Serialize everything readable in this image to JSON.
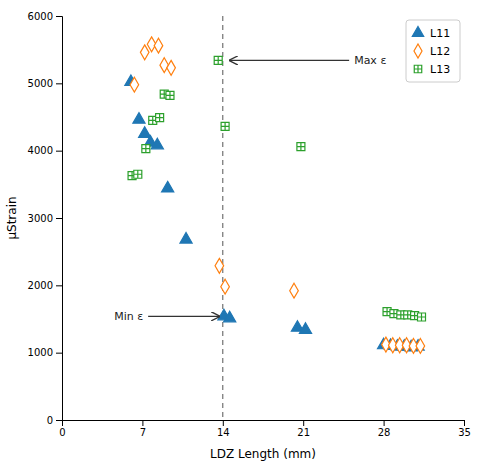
{
  "chart_data": {
    "type": "scatter",
    "x_label": "LDZ Length (mm)",
    "y_label": "μStrain",
    "xlim": [
      0,
      35
    ],
    "ylim": [
      0,
      6000
    ],
    "xticks": [
      0,
      7,
      14,
      21,
      28,
      35
    ],
    "yticks": [
      0,
      1000,
      2000,
      3000,
      4000,
      5000,
      6000
    ],
    "legend": "upper right",
    "series": [
      {
        "name": "L11",
        "marker": "triangle",
        "x": [
          6.0,
          6.7,
          7.2,
          7.7,
          8.3,
          9.2,
          10.8,
          14.1,
          14.6,
          20.5,
          21.2,
          28.0,
          28.6,
          29.2,
          29.8,
          30.4,
          31.0
        ],
        "values": [
          5020,
          4460,
          4250,
          4120,
          4080,
          3440,
          2680,
          1540,
          1510,
          1370,
          1340,
          1110,
          1100,
          1090,
          1090,
          1080,
          1090
        ]
      },
      {
        "name": "L12",
        "marker": "diamond-open",
        "x": [
          6.3,
          7.2,
          7.8,
          8.4,
          8.9,
          9.5,
          13.7,
          14.2,
          20.2,
          28.2,
          28.8,
          29.4,
          30.0,
          30.6,
          31.2
        ],
        "values": [
          4980,
          5460,
          5580,
          5560,
          5270,
          5230,
          2290,
          1980,
          1920,
          1120,
          1110,
          1110,
          1110,
          1100,
          1100
        ]
      },
      {
        "name": "L13",
        "marker": "square-cross",
        "x": [
          6.1,
          6.6,
          7.3,
          7.9,
          8.5,
          8.9,
          9.4,
          13.6,
          14.2,
          20.8,
          28.3,
          28.9,
          29.5,
          30.1,
          30.7,
          31.3
        ],
        "values": [
          3630,
          3650,
          4030,
          4450,
          4490,
          4840,
          4820,
          5340,
          4360,
          4060,
          1610,
          1580,
          1560,
          1560,
          1550,
          1530
        ]
      }
    ],
    "reference_lines": [
      {
        "x": 14,
        "line_style": "dashed"
      }
    ],
    "annotations": [
      {
        "text": "Max ε",
        "x_start": 25.0,
        "x_end": 14.6,
        "y": 5340
      },
      {
        "text": "Min ε",
        "x_start": 7.5,
        "x_end": 13.7,
        "y": 1540
      }
    ]
  }
}
